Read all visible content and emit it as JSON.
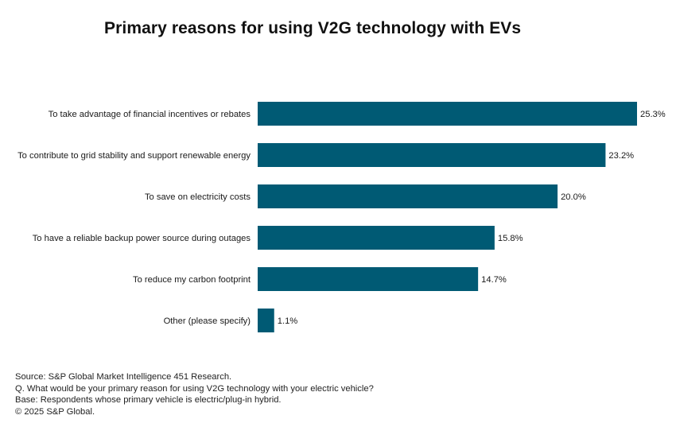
{
  "title": "Primary reasons for using V2G technology with EVs",
  "colors": {
    "bar": "#005a74",
    "label_text": "#1a1a1a",
    "background": "#ffffff"
  },
  "chart_data": {
    "type": "bar",
    "orientation": "horizontal",
    "title": "Primary reasons for using V2G technology with EVs",
    "categories": [
      "To take advantage of financial incentives or rebates",
      "To contribute to grid stability and support renewable energy",
      "To save on electricity costs",
      "To have a reliable backup power source during outages",
      "To reduce my carbon footprint",
      "Other (please specify)"
    ],
    "values": [
      25.3,
      23.2,
      20.0,
      15.8,
      14.7,
      1.1
    ],
    "value_labels": [
      "25.3%",
      "23.2%",
      "20.0%",
      "15.8%",
      "14.7%",
      "1.1%"
    ],
    "unit": "%",
    "xlim": [
      0,
      25.3
    ],
    "grid": false,
    "legend": "none"
  },
  "footnotes": {
    "source": "Source: S&P Global Market Intelligence 451 Research.",
    "question": "Q. What would be your primary reason for using V2G technology with your electric vehicle?",
    "base": "Base: Respondents whose primary vehicle is electric/plug-in hybrid.",
    "copyright": "© 2025 S&P Global."
  }
}
